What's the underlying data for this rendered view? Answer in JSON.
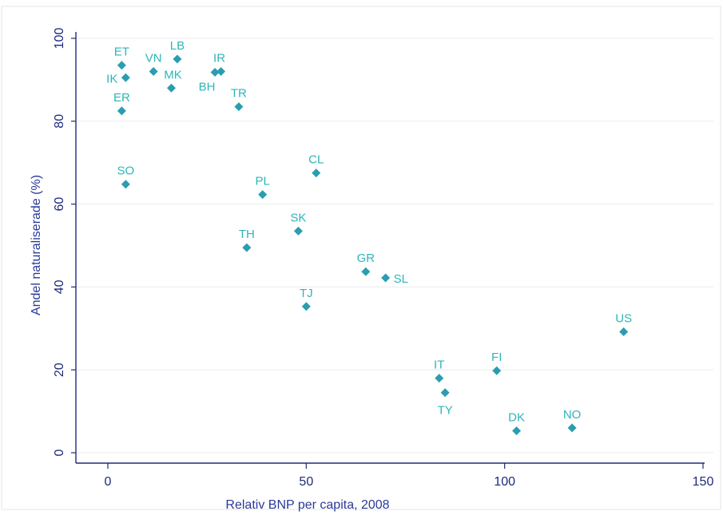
{
  "chart_data": {
    "type": "scatter",
    "title": "",
    "xlabel": "Relativ BNP per capita, 2008",
    "ylabel": "Andel naturaliserade (%)",
    "xlim": [
      -8,
      150
    ],
    "ylim": [
      -6,
      102
    ],
    "xticks": [
      0,
      50,
      100,
      150
    ],
    "yticks": [
      0,
      20,
      40,
      60,
      80,
      100
    ],
    "grid": "horizontal",
    "point_color": "#2a9db0",
    "label_color": "#2fb5b8",
    "axis_color": "#1f2a7a",
    "points": [
      {
        "label": "ET",
        "x": 3.5,
        "y": 93.5,
        "label_pos": "above"
      },
      {
        "label": "IK",
        "x": 4.5,
        "y": 90.5,
        "label_pos": "left"
      },
      {
        "label": "VN",
        "x": 11.5,
        "y": 92,
        "label_pos": "above"
      },
      {
        "label": "LB",
        "x": 17.5,
        "y": 95,
        "label_pos": "above"
      },
      {
        "label": "MK",
        "x": 16,
        "y": 88,
        "label_pos": "above-right"
      },
      {
        "label": "IR",
        "x": 28.5,
        "y": 92,
        "label_pos": "above-left"
      },
      {
        "label": "BH",
        "x": 27,
        "y": 91.8,
        "label_pos": "below-left"
      },
      {
        "label": "TR",
        "x": 33,
        "y": 83.5,
        "label_pos": "above"
      },
      {
        "label": "ER",
        "x": 3.5,
        "y": 82.5,
        "label_pos": "above"
      },
      {
        "label": "SO",
        "x": 4.5,
        "y": 64.8,
        "label_pos": "above"
      },
      {
        "label": "CL",
        "x": 52.5,
        "y": 67.5,
        "label_pos": "above"
      },
      {
        "label": "PL",
        "x": 39,
        "y": 62.3,
        "label_pos": "above"
      },
      {
        "label": "SK",
        "x": 48,
        "y": 53.5,
        "label_pos": "above"
      },
      {
        "label": "TH",
        "x": 35,
        "y": 49.5,
        "label_pos": "above"
      },
      {
        "label": "GR",
        "x": 65,
        "y": 43.7,
        "label_pos": "above"
      },
      {
        "label": "SL",
        "x": 70,
        "y": 42.2,
        "label_pos": "right"
      },
      {
        "label": "TJ",
        "x": 50,
        "y": 35.3,
        "label_pos": "above"
      },
      {
        "label": "US",
        "x": 130,
        "y": 29.2,
        "label_pos": "above"
      },
      {
        "label": "IT",
        "x": 83.5,
        "y": 18,
        "label_pos": "above"
      },
      {
        "label": "FI",
        "x": 98,
        "y": 19.8,
        "label_pos": "above"
      },
      {
        "label": "TY",
        "x": 85,
        "y": 14.5,
        "label_pos": "below"
      },
      {
        "label": "DK",
        "x": 103,
        "y": 5.3,
        "label_pos": "above"
      },
      {
        "label": "NO",
        "x": 117,
        "y": 6,
        "label_pos": "above"
      }
    ]
  }
}
